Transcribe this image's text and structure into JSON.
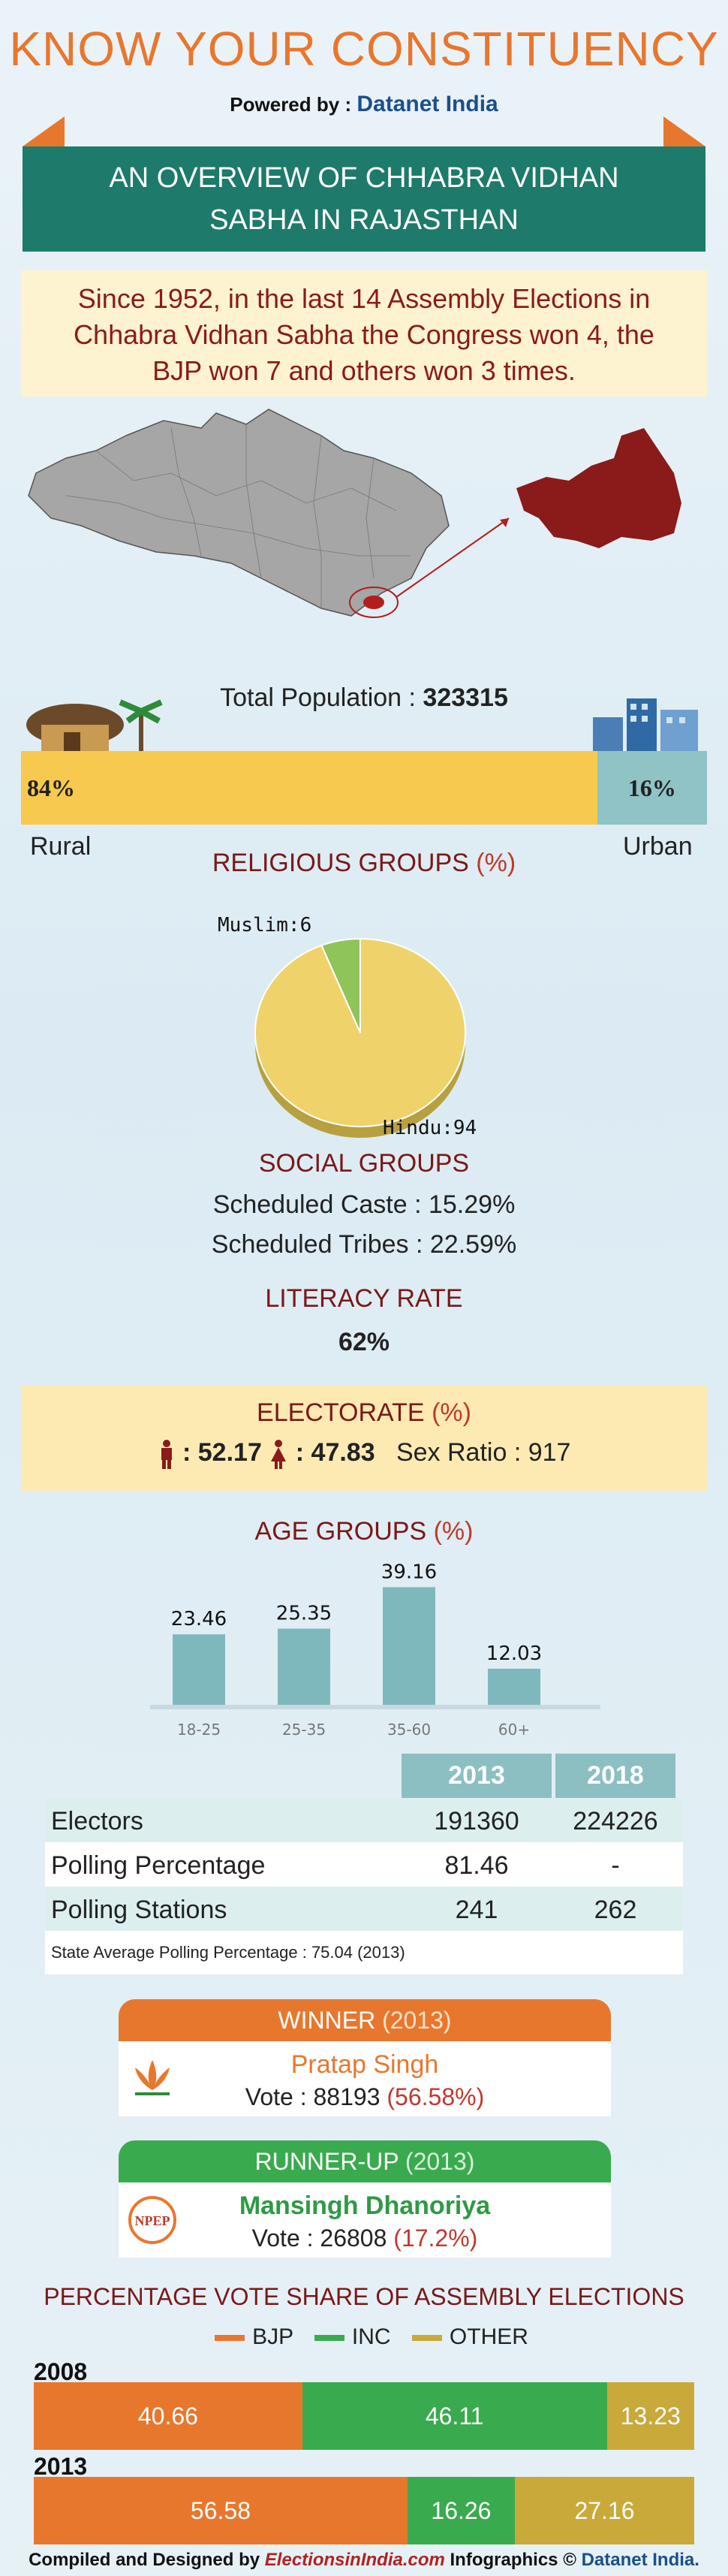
{
  "header": {
    "title": "KNOW YOUR CONSTITUENCY",
    "powered_prefix": "Powered by :",
    "powered_brand": "Datanet India",
    "banner_line1": "AN OVERVIEW OF CHHABRA VIDHAN",
    "banner_line2": "SABHA IN RAJASTHAN"
  },
  "intro": {
    "line1": "Since 1952, in the last 14 Assembly Elections in",
    "line2": "Chhabra Vidhan Sabha the Congress won 4, the",
    "line3": "BJP won 7 and others won 3 times."
  },
  "colors": {
    "orange": "#e8772e",
    "teal": "#1e7a6a",
    "green": "#3aaa4f",
    "olive": "#c8a93a",
    "maroon": "#8b1a1a"
  },
  "population": {
    "label": "Total Population :",
    "value": "323315",
    "rural_pct": "84%",
    "urban_pct": "16%",
    "rural_fraction": 0.84,
    "urban_fraction": 0.16,
    "rural_label": "Rural",
    "urban_label": "Urban"
  },
  "religious": {
    "title": "RELIGIOUS GROUPS",
    "title_unit": "(%)",
    "muslim_label": "Muslim:6",
    "hindu_label": "Hindu:94"
  },
  "social": {
    "title": "SOCIAL GROUPS",
    "sc_label": "Scheduled Caste :",
    "sc_value": "15.29%",
    "st_label": "Scheduled Tribes :",
    "st_value": "22.59%"
  },
  "literacy": {
    "title": "LITERACY RATE",
    "value": "62%"
  },
  "electorate": {
    "title": "ELECTORATE",
    "title_unit": "(%)",
    "male": ": 52.17",
    "female": ": 47.83",
    "sex_ratio": "Sex Ratio : 917"
  },
  "age": {
    "title": "AGE GROUPS",
    "title_unit": "(%)"
  },
  "chart_data": [
    {
      "type": "pie",
      "title": "RELIGIOUS GROUPS (%)",
      "categories": [
        "Hindu",
        "Muslim"
      ],
      "values": [
        94,
        6
      ]
    },
    {
      "type": "bar",
      "title": "AGE GROUPS (%)",
      "categories": [
        "18-25",
        "25-35",
        "35-60",
        "60+"
      ],
      "values": [
        23.46,
        25.35,
        39.16,
        12.03
      ],
      "ylim": [
        0,
        45
      ]
    },
    {
      "type": "bar",
      "title": "PERCENTAGE VOTE SHARE OF ASSEMBLY ELECTIONS",
      "stacked": true,
      "categories": [
        "2008",
        "2013"
      ],
      "series": [
        {
          "name": "BJP",
          "values": [
            40.66,
            56.58
          ]
        },
        {
          "name": "INC",
          "values": [
            46.11,
            16.26
          ]
        },
        {
          "name": "OTHER",
          "values": [
            13.23,
            27.16
          ]
        }
      ]
    }
  ],
  "age_bars": [
    {
      "label": "23.46",
      "cat": "18-25",
      "value": 23.46
    },
    {
      "label": "25.35",
      "cat": "25-35",
      "value": 25.35
    },
    {
      "label": "39.16",
      "cat": "35-60",
      "value": 39.16
    },
    {
      "label": "12.03",
      "cat": "60+",
      "value": 12.03
    }
  ],
  "table": {
    "col1": "2013",
    "col2": "2018",
    "rows": [
      {
        "label": "Electors",
        "v2013": "191360",
        "v2018": "224226"
      },
      {
        "label": "Polling Percentage",
        "v2013": "81.46",
        "v2018": "-"
      },
      {
        "label": "Polling Stations",
        "v2013": "241",
        "v2018": "262"
      }
    ],
    "note": "State Average Polling Percentage : 75.04 (2013)"
  },
  "winner": {
    "head": "WINNER",
    "year": "(2013)",
    "name": "Pratap Singh",
    "vote_label": "Vote : 88193",
    "vote_pct": "(56.58%)"
  },
  "runner": {
    "head": "RUNNER-UP",
    "year": "(2013)",
    "name": "Mansingh Dhanoriya",
    "vote_label": "Vote : 26808",
    "vote_pct": "(17.2%)",
    "symbol_text": "NPEP"
  },
  "vote_share": {
    "title": "PERCENTAGE VOTE SHARE OF ASSEMBLY ELECTIONS",
    "legend": [
      "BJP",
      "INC",
      "OTHER"
    ],
    "years": [
      {
        "year": "2008",
        "bjp": "40.66",
        "inc": "46.11",
        "other": "13.23"
      },
      {
        "year": "2013",
        "bjp": "56.58",
        "inc": "16.26",
        "other": "27.16"
      }
    ]
  },
  "footer": {
    "prefix": "Compiled and Designed by",
    "el_brand": "ElectionsinIndia.com",
    "mid": "Infographics ©",
    "dn_brand": "Datanet India."
  }
}
